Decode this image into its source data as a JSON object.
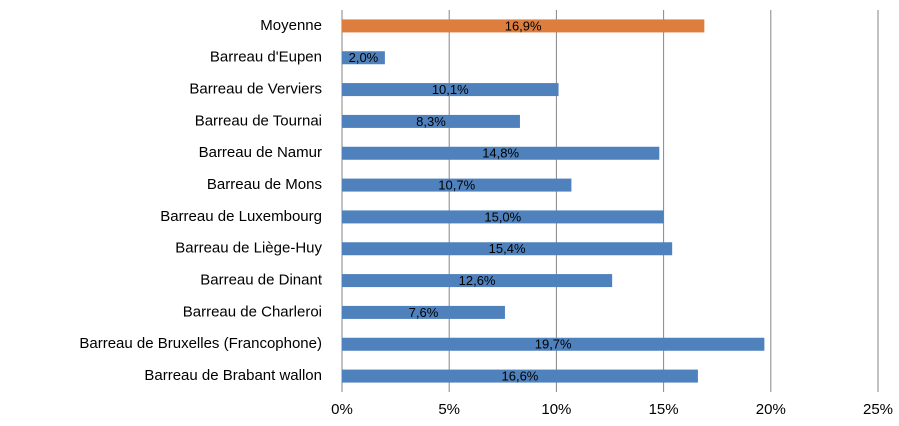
{
  "chart_data": {
    "type": "barh",
    "categories": [
      "Moyenne",
      "Barreau d'Eupen",
      "Barreau de Verviers",
      "Barreau de Tournai",
      "Barreau de Namur",
      "Barreau de Mons",
      "Barreau de Luxembourg",
      "Barreau de Liège-Huy",
      "Barreau de Dinant",
      "Barreau de Charleroi",
      "Barreau de Bruxelles (Francophone)",
      "Barreau de Brabant wallon"
    ],
    "values": [
      16.9,
      2.0,
      10.1,
      8.3,
      14.8,
      10.7,
      15.0,
      15.4,
      12.6,
      7.6,
      19.7,
      16.6
    ],
    "value_labels": [
      "16,9%",
      "2,0%",
      "10,1%",
      "8,3%",
      "14,8%",
      "10,7%",
      "15,0%",
      "15,4%",
      "12,6%",
      "7,6%",
      "19,7%",
      "16,6%"
    ],
    "colors": [
      "#dd7d3e",
      "#4f81bd",
      "#4f81bd",
      "#4f81bd",
      "#4f81bd",
      "#4f81bd",
      "#4f81bd",
      "#4f81bd",
      "#4f81bd",
      "#4f81bd",
      "#4f81bd",
      "#4f81bd"
    ],
    "xlim": [
      0,
      25
    ],
    "xticks": [
      {
        "value": 0,
        "label": "0%"
      },
      {
        "value": 5,
        "label": "5%"
      },
      {
        "value": 10,
        "label": "10%"
      },
      {
        "value": 15,
        "label": "15%"
      },
      {
        "value": 20,
        "label": "20%"
      },
      {
        "value": 25,
        "label": "25%"
      }
    ],
    "grid": true
  }
}
